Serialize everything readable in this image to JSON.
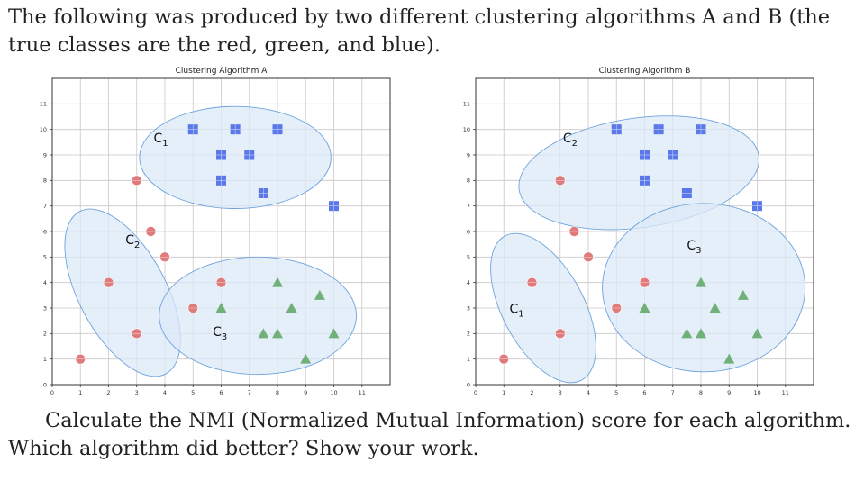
{
  "intro_text": "The following was produced by two different clustering algorithms A and B (the true classes are the red, green, and blue).",
  "question_text": "Calculate the NMI (Normalized Mutual Information) score for each algorithm. Which algorithm did better? Show your work.",
  "colors": {
    "red": "#e07b7b",
    "green": "#72b07a",
    "blue": "#5b78e8",
    "ellipse_fill": "#dce9f8",
    "ellipse_stroke": "#6fa3dc",
    "grid": "#c8c8c8"
  },
  "chart_data": [
    {
      "type": "scatter",
      "title": "Clustering Algorithm A",
      "xlim": [
        0,
        12
      ],
      "ylim": [
        0,
        12
      ],
      "xticks": [
        0,
        1,
        2,
        3,
        4,
        5,
        6,
        7,
        8,
        9,
        10,
        11
      ],
      "yticks": [
        0,
        1,
        2,
        3,
        4,
        5,
        6,
        7,
        8,
        9,
        10,
        11
      ],
      "grid": true,
      "series": [
        {
          "name": "red",
          "marker": "circle",
          "points": [
            [
              1,
              1
            ],
            [
              2,
              4
            ],
            [
              3,
              2
            ],
            [
              3,
              8
            ],
            [
              3.5,
              6
            ],
            [
              4,
              5
            ],
            [
              5,
              3
            ],
            [
              6,
              4
            ]
          ]
        },
        {
          "name": "green",
          "marker": "triangle",
          "points": [
            [
              6,
              3
            ],
            [
              7.5,
              2
            ],
            [
              8,
              2
            ],
            [
              8,
              4
            ],
            [
              8.5,
              3
            ],
            [
              9,
              1
            ],
            [
              9.5,
              3.5
            ],
            [
              10,
              2
            ]
          ]
        },
        {
          "name": "blue",
          "marker": "square",
          "points": [
            [
              5,
              10
            ],
            [
              6,
              8
            ],
            [
              6,
              9
            ],
            [
              6.5,
              10
            ],
            [
              7,
              9
            ],
            [
              7.5,
              7.5
            ],
            [
              8,
              10
            ],
            [
              10,
              7
            ]
          ]
        }
      ],
      "clusters": [
        {
          "label": "C",
          "sub": "1",
          "cx": 6.5,
          "cy": 8.9,
          "rx": 3.4,
          "ry": 2.0,
          "angle": 0,
          "label_pos": [
            3.6,
            9.5
          ]
        },
        {
          "label": "C",
          "sub": "2",
          "cx": 2.5,
          "cy": 3.6,
          "rx": 1.55,
          "ry": 3.6,
          "angle": -28,
          "label_pos": [
            2.6,
            5.5
          ]
        },
        {
          "label": "C",
          "sub": "3",
          "cx": 7.3,
          "cy": 2.7,
          "rx": 3.5,
          "ry": 2.3,
          "angle": 0,
          "label_pos": [
            5.7,
            1.9
          ]
        }
      ]
    },
    {
      "type": "scatter",
      "title": "Clustering Algorithm B",
      "xlim": [
        0,
        12
      ],
      "ylim": [
        0,
        12
      ],
      "xticks": [
        0,
        1,
        2,
        3,
        4,
        5,
        6,
        7,
        8,
        9,
        10,
        11
      ],
      "yticks": [
        0,
        1,
        2,
        3,
        4,
        5,
        6,
        7,
        8,
        9,
        10,
        11
      ],
      "grid": true,
      "series": [
        {
          "name": "red",
          "marker": "circle",
          "points": [
            [
              1,
              1
            ],
            [
              2,
              4
            ],
            [
              3,
              2
            ],
            [
              3,
              8
            ],
            [
              3.5,
              6
            ],
            [
              4,
              5
            ],
            [
              5,
              3
            ],
            [
              6,
              4
            ]
          ]
        },
        {
          "name": "green",
          "marker": "triangle",
          "points": [
            [
              6,
              3
            ],
            [
              7.5,
              2
            ],
            [
              8,
              2
            ],
            [
              8,
              4
            ],
            [
              8.5,
              3
            ],
            [
              9,
              1
            ],
            [
              9.5,
              3.5
            ],
            [
              10,
              2
            ]
          ]
        },
        {
          "name": "blue",
          "marker": "square",
          "points": [
            [
              5,
              10
            ],
            [
              6,
              8
            ],
            [
              6,
              9
            ],
            [
              6.5,
              10
            ],
            [
              7,
              9
            ],
            [
              7.5,
              7.5
            ],
            [
              8,
              10
            ],
            [
              10,
              7
            ]
          ]
        }
      ],
      "clusters": [
        {
          "label": "C",
          "sub": "1",
          "cx": 2.4,
          "cy": 3.0,
          "rx": 1.45,
          "ry": 3.2,
          "angle": -28,
          "label_pos": [
            1.2,
            2.8
          ]
        },
        {
          "label": "C",
          "sub": "2",
          "cx": 5.8,
          "cy": 8.3,
          "rx": 4.3,
          "ry": 2.15,
          "angle": -8,
          "label_pos": [
            3.1,
            9.5
          ]
        },
        {
          "label": "C",
          "sub": "3",
          "cx": 8.1,
          "cy": 3.8,
          "rx": 3.6,
          "ry": 3.3,
          "angle": 0,
          "label_pos": [
            7.5,
            5.3
          ]
        }
      ]
    }
  ]
}
